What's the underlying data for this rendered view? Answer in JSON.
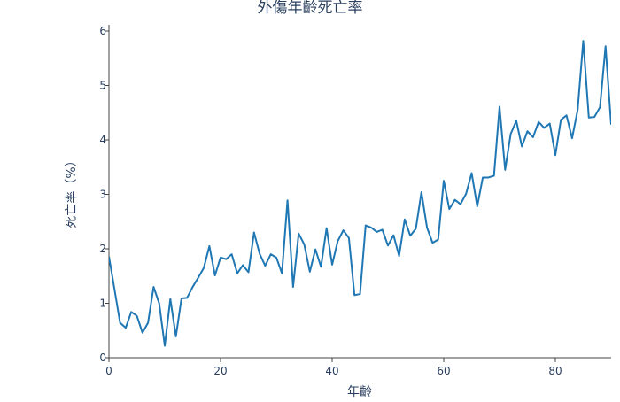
{
  "chart_data": {
    "type": "line",
    "title": "外傷年齡死亡率",
    "xlabel": "年齡",
    "ylabel": "死亡率（%）",
    "xlim": [
      0,
      90
    ],
    "ylim": [
      0,
      6.1
    ],
    "xticks": [
      0,
      20,
      40,
      60,
      80
    ],
    "yticks": [
      0,
      1,
      2,
      3,
      4,
      5,
      6
    ],
    "grid": false,
    "line_color": "#1f77b4",
    "series": [
      {
        "x": [
          0,
          1,
          2,
          3,
          4,
          5,
          6,
          7,
          8,
          9,
          10,
          11,
          12,
          13,
          14,
          15,
          16,
          17,
          18,
          19,
          20,
          21,
          22,
          23,
          24,
          25,
          26,
          27,
          28,
          29,
          30,
          31,
          32,
          33,
          34,
          35,
          36,
          37,
          38,
          39,
          40,
          41,
          42,
          43,
          44,
          45,
          46,
          47,
          48,
          49,
          50,
          51,
          52,
          53,
          54,
          55,
          56,
          57,
          58,
          59,
          60,
          61,
          62,
          63,
          64,
          65,
          66,
          67,
          68,
          69,
          70,
          71,
          72,
          73,
          74,
          75,
          76,
          77,
          78,
          79,
          80,
          81,
          82,
          83,
          84,
          85,
          86,
          87,
          88,
          89,
          90
        ],
        "y": [
          1.86,
          1.25,
          0.64,
          0.55,
          0.84,
          0.77,
          0.46,
          0.64,
          1.3,
          1.0,
          0.22,
          1.08,
          0.39,
          1.09,
          1.1,
          1.3,
          1.47,
          1.65,
          2.05,
          1.51,
          1.84,
          1.81,
          1.9,
          1.55,
          1.7,
          1.57,
          2.3,
          1.91,
          1.69,
          1.9,
          1.84,
          1.55,
          2.89,
          1.3,
          2.28,
          2.08,
          1.58,
          1.99,
          1.67,
          2.38,
          1.71,
          2.14,
          2.34,
          2.2,
          1.15,
          1.17,
          2.43,
          2.39,
          2.31,
          2.35,
          2.06,
          2.25,
          1.87,
          2.54,
          2.24,
          2.37,
          3.04,
          2.39,
          2.11,
          2.17,
          3.25,
          2.73,
          2.9,
          2.82,
          3.01,
          3.39,
          2.78,
          3.31,
          3.31,
          3.34,
          4.61,
          3.45,
          4.11,
          4.35,
          3.88,
          4.16,
          4.05,
          4.33,
          4.22,
          4.3,
          3.72,
          4.37,
          4.45,
          4.03,
          4.55,
          5.82,
          4.41,
          4.42,
          4.6,
          5.72,
          4.28
        ]
      }
    ]
  }
}
